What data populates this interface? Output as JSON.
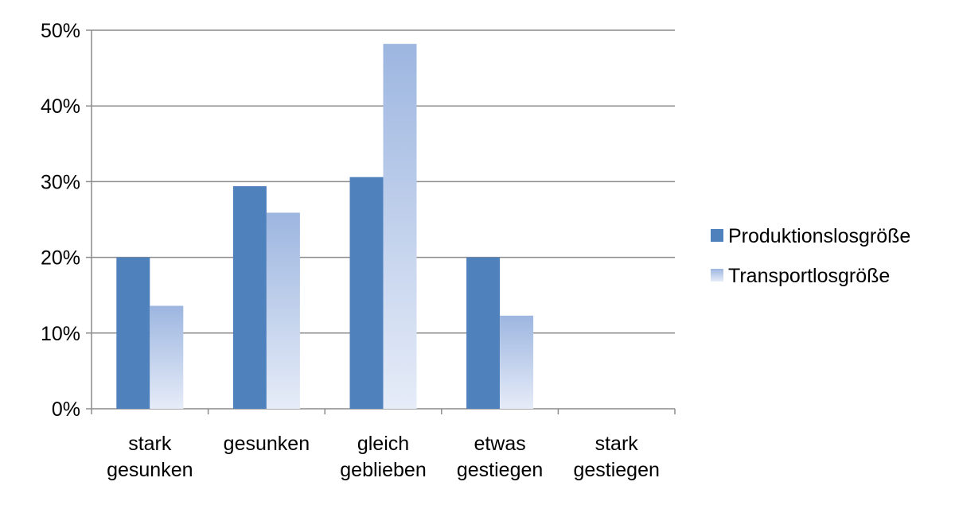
{
  "chart_data": {
    "type": "bar",
    "categories": [
      [
        "stark",
        "gesunken"
      ],
      [
        "gesunken"
      ],
      [
        "gleich",
        "geblieben"
      ],
      [
        "etwas",
        "gestiegen"
      ],
      [
        "stark",
        "gestiegen"
      ]
    ],
    "series": [
      {
        "name": "Produktionslosgröße",
        "values": [
          20,
          29.4,
          30.6,
          20,
          0
        ],
        "color": "#4f81bd"
      },
      {
        "name": "Transportlosgröße",
        "values": [
          13.6,
          25.9,
          48.2,
          12.3,
          0
        ],
        "color": "#9db6e0"
      }
    ],
    "ylim": [
      0,
      50
    ],
    "yticks": [
      0,
      10,
      20,
      30,
      40,
      50
    ],
    "ytick_labels": [
      "0%",
      "10%",
      "20%",
      "30%",
      "40%",
      "50%"
    ],
    "grid": true,
    "legend_position": "right"
  }
}
